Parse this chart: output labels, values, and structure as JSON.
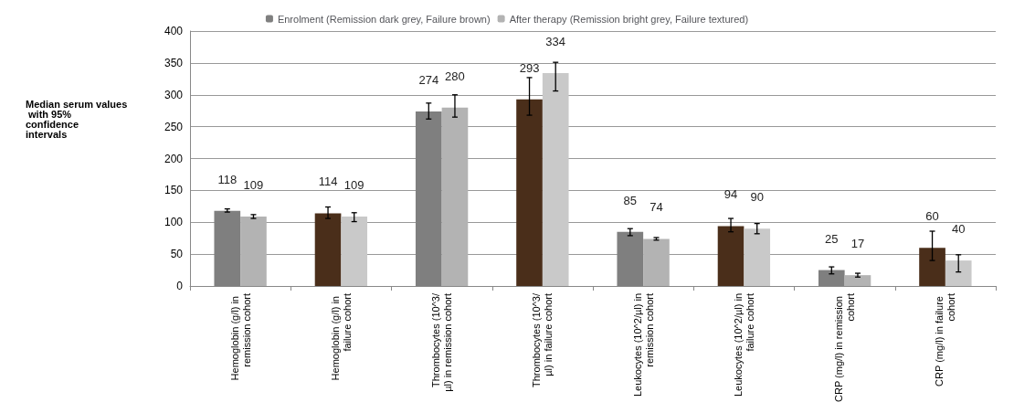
{
  "chart_data": {
    "type": "bar",
    "ylabel": "Median serum values with 95% confidence intervals",
    "categories": [
      "Hemoglobin (g/l) in remission cohort",
      "Hemoglobin (g/l) in failure cohort",
      "Thrombocytes (10^3/µl) in remission cohort",
      "Thrombocytes (10^3/µl) in failure cohort",
      "Leukocytes (10^2/µl) in remission cohort",
      "Leukocytes (10^2/µl) in failure cohort",
      "CRP (mg/l) in remission cohort",
      "CRP (mg/l) in failure cohort"
    ],
    "series": [
      {
        "name": "Enrolment (Remission dark grey, Failure brown)",
        "color": "#7f7f7f",
        "colors": [
          "#7f7f7f",
          "#4a2e1a",
          "#7f7f7f",
          "#4a2e1a",
          "#7f7f7f",
          "#4a2e1a",
          "#7f7f7f",
          "#4a2e1a"
        ],
        "values": [
          118,
          114,
          274,
          293,
          85,
          94,
          25,
          60
        ],
        "errors": [
          [
            116,
            121
          ],
          [
            106,
            124
          ],
          [
            262,
            287
          ],
          [
            268,
            327
          ],
          [
            79,
            90
          ],
          [
            85,
            106
          ],
          [
            19,
            30
          ],
          [
            40,
            86
          ]
        ]
      },
      {
        "name": "After therapy (Remission bright grey, Failure textured)",
        "color": "#b3b3b3",
        "colors": [
          "#b3b3b3",
          "#c9c9c9",
          "#b3b3b3",
          "#c9c9c9",
          "#b3b3b3",
          "#c9c9c9",
          "#b3b3b3",
          "#c9c9c9"
        ],
        "values": [
          109,
          109,
          280,
          334,
          74,
          90,
          17,
          40
        ],
        "errors": [
          [
            106,
            112
          ],
          [
            101,
            115
          ],
          [
            265,
            300
          ],
          [
            306,
            351
          ],
          [
            72,
            76
          ],
          [
            82,
            98
          ],
          [
            14,
            20
          ],
          [
            22,
            49
          ]
        ]
      }
    ],
    "ylim": [
      0,
      400
    ],
    "yticks": [
      0,
      50,
      100,
      150,
      200,
      250,
      300,
      350,
      400
    ],
    "grid": "y",
    "legend": "top",
    "data_labels": true
  }
}
